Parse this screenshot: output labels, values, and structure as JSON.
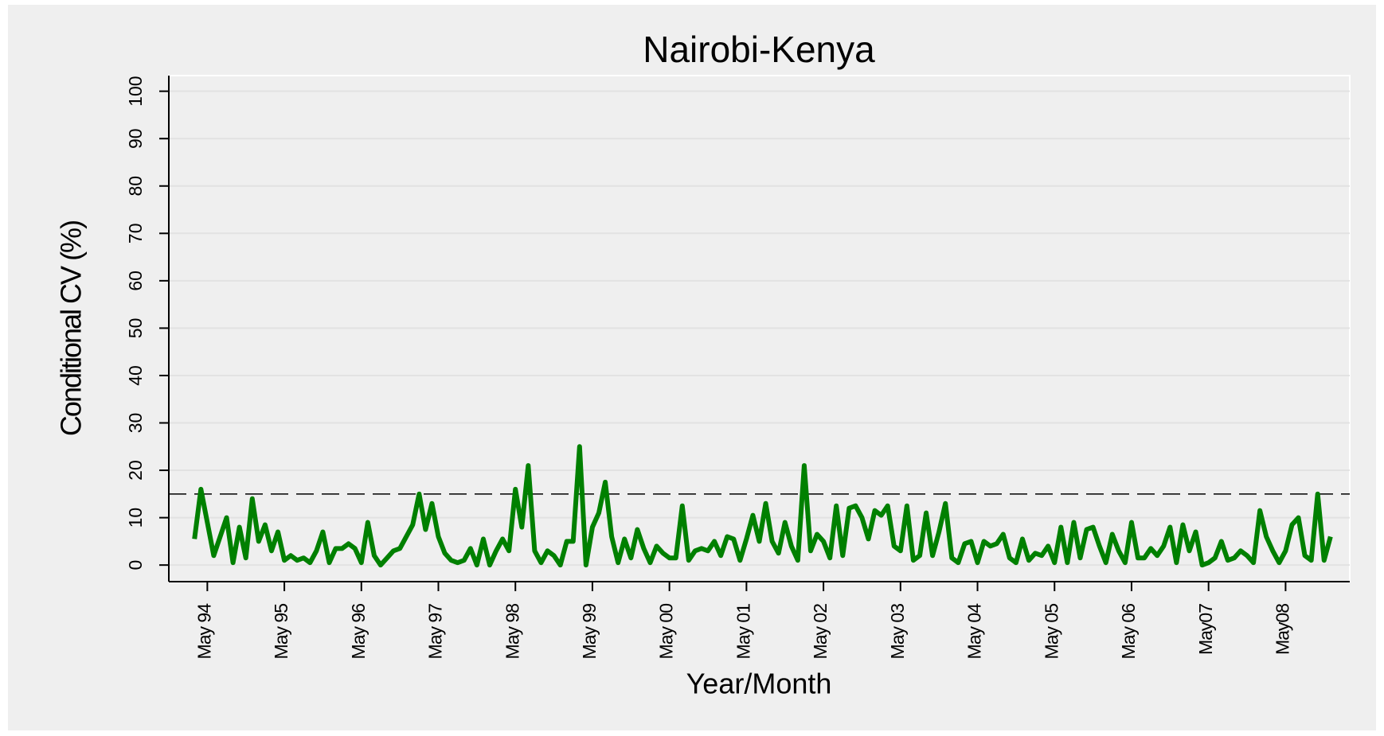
{
  "chart_data": {
    "type": "line",
    "title": "Nairobi-Kenya",
    "x_label": "Year/Month",
    "y_label": "Conditional CV (%)",
    "x": [
      "1994-03",
      "1994-04",
      "1994-05",
      "1994-06",
      "1994-07",
      "1994-08",
      "1994-09",
      "1994-10",
      "1994-11",
      "1994-12",
      "1995-01",
      "1995-02",
      "1995-03",
      "1995-04",
      "1995-05",
      "1995-06",
      "1995-07",
      "1995-08",
      "1995-09",
      "1995-10",
      "1995-11",
      "1995-12",
      "1996-01",
      "1996-02",
      "1996-03",
      "1996-04",
      "1996-05",
      "1996-06",
      "1996-07",
      "1996-08",
      "1996-09",
      "1996-10",
      "1996-11",
      "1996-12",
      "1997-01",
      "1997-02",
      "1997-03",
      "1997-04",
      "1997-05",
      "1997-06",
      "1997-07",
      "1997-08",
      "1997-09",
      "1997-10",
      "1997-11",
      "1997-12",
      "1998-01",
      "1998-02",
      "1998-03",
      "1998-04",
      "1998-05",
      "1998-06",
      "1998-07",
      "1998-08",
      "1998-09",
      "1998-10",
      "1998-11",
      "1998-12",
      "1999-01",
      "1999-02",
      "1999-03",
      "1999-04",
      "1999-05",
      "1999-06",
      "1999-07",
      "1999-08",
      "1999-09",
      "1999-10",
      "1999-11",
      "1999-12",
      "2000-01",
      "2000-02",
      "2000-03",
      "2000-04",
      "2000-05",
      "2000-06",
      "2000-07",
      "2000-08",
      "2000-09",
      "2000-10",
      "2000-11",
      "2000-12",
      "2001-01",
      "2001-02",
      "2001-03",
      "2001-04",
      "2001-05",
      "2001-06",
      "2001-07",
      "2001-08",
      "2001-09",
      "2001-10",
      "2001-11",
      "2001-12",
      "2002-01",
      "2002-02",
      "2002-03",
      "2002-04",
      "2002-05",
      "2002-06",
      "2002-07",
      "2002-08",
      "2002-09",
      "2002-10",
      "2002-11",
      "2002-12",
      "2003-01",
      "2003-02",
      "2003-03",
      "2003-04",
      "2003-05",
      "2003-06",
      "2003-07",
      "2003-08",
      "2003-09",
      "2003-10",
      "2003-11",
      "2003-12",
      "2004-01",
      "2004-02",
      "2004-03",
      "2004-04",
      "2004-05",
      "2004-06",
      "2004-07",
      "2004-08",
      "2004-09",
      "2004-10",
      "2004-11",
      "2004-12",
      "2005-01",
      "2005-02",
      "2005-03",
      "2005-04",
      "2005-05",
      "2005-06",
      "2005-07",
      "2005-08",
      "2005-09",
      "2005-10",
      "2005-11",
      "2005-12",
      "2006-01",
      "2006-02",
      "2006-03",
      "2006-04",
      "2006-05",
      "2006-06",
      "2006-07",
      "2006-08",
      "2006-09",
      "2006-10",
      "2006-11",
      "2006-12",
      "2007-01",
      "2007-02",
      "2007-03",
      "2007-04",
      "2007-05",
      "2007-06",
      "2007-07",
      "2007-08",
      "2007-09",
      "2007-10",
      "2007-11",
      "2007-12",
      "2008-01",
      "2008-02",
      "2008-03",
      "2008-04",
      "2008-05",
      "2008-06",
      "2008-07",
      "2008-08",
      "2008-09",
      "2008-10",
      "2008-11",
      "2008-12"
    ],
    "series": [
      {
        "color": "#008000",
        "values": [
          5.5,
          16,
          9,
          2,
          6,
          10,
          0.5,
          8,
          1.5,
          14,
          5,
          8.5,
          3,
          7,
          1,
          2,
          1,
          1.5,
          0.5,
          3,
          7,
          0.5,
          3.5,
          3.5,
          4.5,
          3.5,
          0.5,
          9,
          2,
          0,
          1.5,
          3,
          3.5,
          6,
          8.5,
          15,
          7.5,
          13,
          6,
          2.5,
          1,
          0.5,
          1,
          3.5,
          0,
          5.5,
          0,
          3,
          5.5,
          3,
          16,
          8,
          21,
          3,
          0.5,
          3,
          2,
          0,
          5,
          5,
          25,
          0,
          8,
          11,
          17.5,
          6,
          0.5,
          5.5,
          1.5,
          7.5,
          3.5,
          0.5,
          4,
          2.5,
          1.5,
          1.5,
          12.5,
          1,
          3,
          3.5,
          3,
          5,
          2,
          6,
          5.5,
          1,
          5.5,
          10.5,
          5,
          13,
          5,
          2.5,
          9,
          4,
          1,
          21,
          3,
          6.5,
          5,
          1.5,
          12.5,
          2,
          12,
          12.5,
          10,
          5.5,
          11.5,
          10.5,
          12.5,
          4,
          3,
          12.5,
          1,
          2,
          11,
          2,
          7,
          13,
          1.5,
          0.5,
          4.5,
          5,
          0.5,
          5,
          4,
          4.5,
          6.5,
          1.5,
          0.5,
          5.5,
          1,
          2.5,
          2,
          4,
          0.5,
          8,
          0.5,
          9,
          1.5,
          7.5,
          8,
          4,
          0.5,
          6.5,
          3,
          0.5,
          9,
          1.5,
          1.5,
          3.5,
          2,
          4,
          8,
          0.5,
          8.5,
          3,
          7,
          0,
          0.5,
          1.5,
          5,
          1,
          1.5,
          3,
          2,
          0.5,
          11.5,
          6,
          3,
          0.5,
          3,
          8.5,
          10,
          2,
          1,
          15,
          1,
          6
        ]
      }
    ],
    "reference_line": 15,
    "xlim": [
      "1993-11",
      "2009-03"
    ],
    "xticks": [
      {
        "value": "1994-05",
        "label": "May 94"
      },
      {
        "value": "1995-05",
        "label": "May 95"
      },
      {
        "value": "1996-05",
        "label": "May 96"
      },
      {
        "value": "1997-05",
        "label": "May 97"
      },
      {
        "value": "1998-05",
        "label": "May 98"
      },
      {
        "value": "1999-05",
        "label": "May 99"
      },
      {
        "value": "2000-05",
        "label": "May 00"
      },
      {
        "value": "2001-05",
        "label": "May 01"
      },
      {
        "value": "2002-05",
        "label": "May 02"
      },
      {
        "value": "2003-05",
        "label": "May 03"
      },
      {
        "value": "2004-05",
        "label": "May 04"
      },
      {
        "value": "2005-05",
        "label": "May 05"
      },
      {
        "value": "2006-05",
        "label": "May 06"
      },
      {
        "value": "2007-05",
        "label": "May07"
      },
      {
        "value": "2008-05",
        "label": "May08"
      }
    ],
    "ylim": [
      -3.5,
      103.3
    ],
    "yticks": [
      0,
      10,
      20,
      30,
      40,
      50,
      60,
      70,
      80,
      90,
      100
    ],
    "grid": true
  }
}
